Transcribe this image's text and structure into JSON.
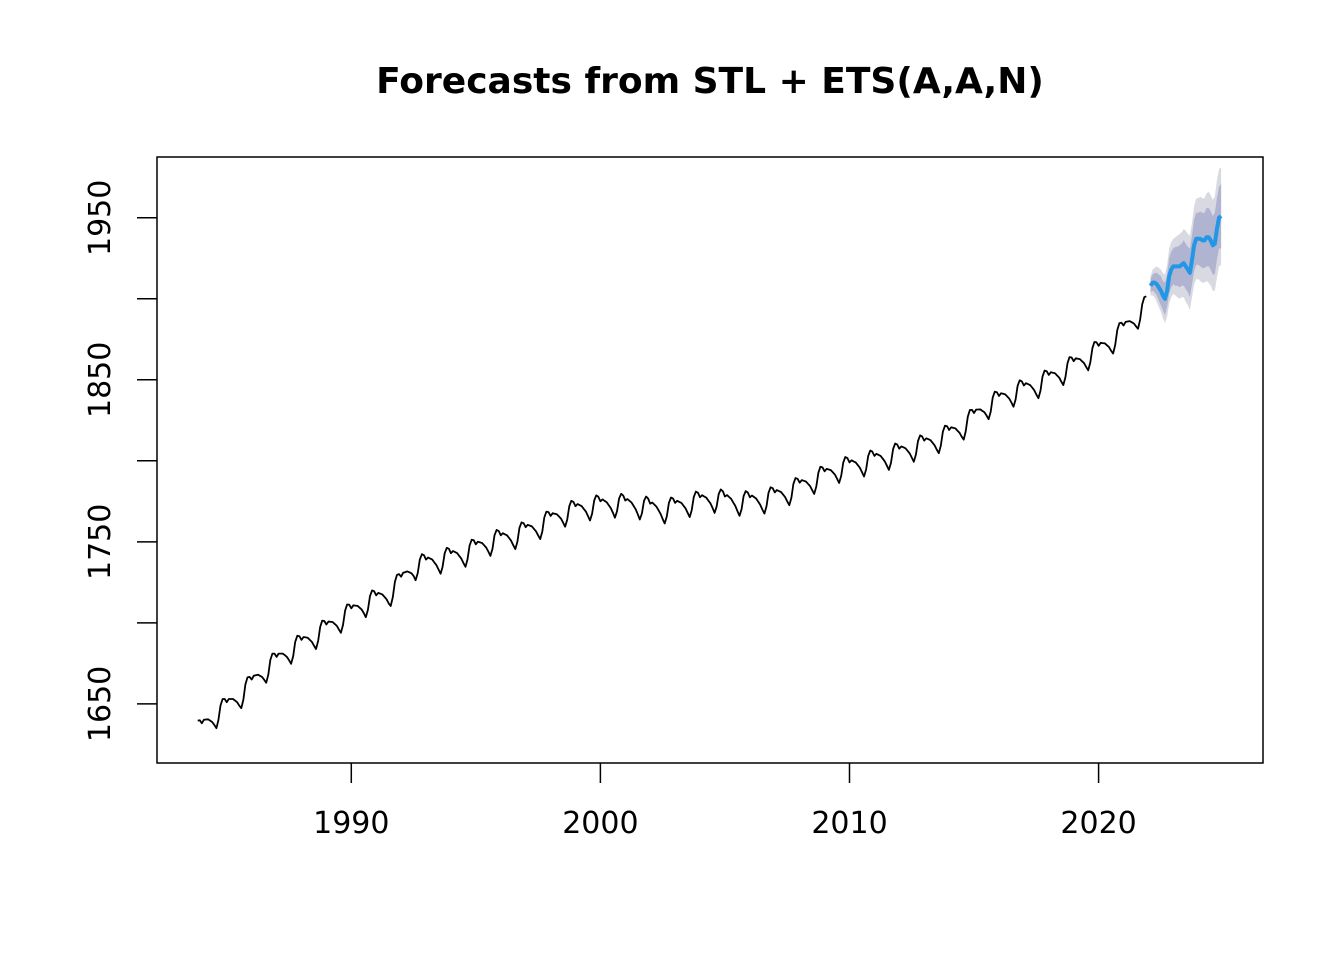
{
  "chart_data": {
    "type": "line",
    "title": "Forecasts from STL +  ETS(A,A,N)",
    "xlabel": "",
    "ylabel": "",
    "xlim": [
      1982.2,
      2026.6
    ],
    "ylim": [
      1613.5,
      1987.5
    ],
    "x_ticks": [
      {
        "value": 1990,
        "label": "1990"
      },
      {
        "value": 2000,
        "label": "2000"
      },
      {
        "value": 2010,
        "label": "2010"
      },
      {
        "value": 2020,
        "label": "2020"
      }
    ],
    "y_ticks": [
      {
        "value": 1650,
        "label": "1650"
      },
      {
        "value": 1700,
        "label": ""
      },
      {
        "value": 1750,
        "label": "1750"
      },
      {
        "value": 1800,
        "label": ""
      },
      {
        "value": 1850,
        "label": "1850"
      },
      {
        "value": 1900,
        "label": ""
      },
      {
        "value": 1950,
        "label": "1950"
      }
    ],
    "seasonal_pattern": [
      0,
      1,
      0,
      -1,
      -3,
      -5,
      -8,
      -11,
      -7,
      1,
      4,
      3
    ],
    "history": {
      "start": 1983.8333,
      "frequency": 12,
      "color": "#000000",
      "annual_means": [
        {
          "year": 1983,
          "value": 1631
        },
        {
          "year": 1984,
          "value": 1645
        },
        {
          "year": 1985,
          "value": 1657
        },
        {
          "year": 1986,
          "value": 1673
        },
        {
          "year": 1987,
          "value": 1685
        },
        {
          "year": 1988,
          "value": 1694
        },
        {
          "year": 1989,
          "value": 1704
        },
        {
          "year": 1990,
          "value": 1714
        },
        {
          "year": 1991,
          "value": 1720
        },
        {
          "year": 1992,
          "value": 1737
        },
        {
          "year": 1993,
          "value": 1741
        },
        {
          "year": 1994,
          "value": 1745
        },
        {
          "year": 1995,
          "value": 1752
        },
        {
          "year": 1996,
          "value": 1756
        },
        {
          "year": 1997,
          "value": 1762
        },
        {
          "year": 1998,
          "value": 1770
        },
        {
          "year": 1999,
          "value": 1774
        },
        {
          "year": 2000,
          "value": 1776
        },
        {
          "year": 2001,
          "value": 1775
        },
        {
          "year": 2002,
          "value": 1772
        },
        {
          "year": 2003,
          "value": 1776
        },
        {
          "year": 2004,
          "value": 1779
        },
        {
          "year": 2005,
          "value": 1777
        },
        {
          "year": 2006,
          "value": 1778
        },
        {
          "year": 2007,
          "value": 1783
        },
        {
          "year": 2008,
          "value": 1790
        },
        {
          "year": 2009,
          "value": 1797
        },
        {
          "year": 2010,
          "value": 1801
        },
        {
          "year": 2011,
          "value": 1805
        },
        {
          "year": 2012,
          "value": 1810
        },
        {
          "year": 2013,
          "value": 1815
        },
        {
          "year": 2014,
          "value": 1823
        },
        {
          "year": 2015,
          "value": 1836
        },
        {
          "year": 2016,
          "value": 1844
        },
        {
          "year": 2017,
          "value": 1849
        },
        {
          "year": 2018,
          "value": 1857
        },
        {
          "year": 2019,
          "value": 1866
        },
        {
          "year": 2020,
          "value": 1876
        },
        {
          "year": 2021,
          "value": 1891
        },
        {
          "year": 2022,
          "value": 1909
        }
      ]
    },
    "forecast": {
      "color": "#2297e6",
      "band80_color": "#b0b4d0",
      "band95_color": "#d9d9e2",
      "points": [
        {
          "x": 2022.0833,
          "mean": 1908,
          "lo80": 1904,
          "hi80": 1912,
          "lo95": 1902,
          "hi95": 1914
        },
        {
          "x": 2022.1667,
          "mean": 1910,
          "lo80": 1905,
          "hi80": 1915,
          "lo95": 1902,
          "hi95": 1918
        },
        {
          "x": 2022.25,
          "mean": 1910,
          "lo80": 1904,
          "hi80": 1916,
          "lo95": 1901,
          "hi95": 1919
        },
        {
          "x": 2022.3333,
          "mean": 1909,
          "lo80": 1902,
          "hi80": 1916,
          "lo95": 1898,
          "hi95": 1920
        },
        {
          "x": 2022.4167,
          "mean": 1907,
          "lo80": 1899,
          "hi80": 1915,
          "lo95": 1895,
          "hi95": 1919
        },
        {
          "x": 2022.5,
          "mean": 1905,
          "lo80": 1896,
          "hi80": 1914,
          "lo95": 1892,
          "hi95": 1918
        },
        {
          "x": 2022.5833,
          "mean": 1902,
          "lo80": 1893,
          "hi80": 1911,
          "lo95": 1888,
          "hi95": 1916
        },
        {
          "x": 2022.6667,
          "mean": 1900,
          "lo80": 1890,
          "hi80": 1910,
          "lo95": 1885,
          "hi95": 1915
        },
        {
          "x": 2022.75,
          "mean": 1905,
          "lo80": 1895,
          "hi80": 1915,
          "lo95": 1889,
          "hi95": 1921
        },
        {
          "x": 2022.8333,
          "mean": 1914,
          "lo80": 1903,
          "hi80": 1925,
          "lo95": 1897,
          "hi95": 1931
        },
        {
          "x": 2022.9167,
          "mean": 1918,
          "lo80": 1907,
          "hi80": 1929,
          "lo95": 1901,
          "hi95": 1935
        },
        {
          "x": 2023.0,
          "mean": 1920,
          "lo80": 1909,
          "hi80": 1931,
          "lo95": 1903,
          "hi95": 1937
        },
        {
          "x": 2023.0833,
          "mean": 1920,
          "lo80": 1908,
          "hi80": 1932,
          "lo95": 1902,
          "hi95": 1938
        },
        {
          "x": 2023.1667,
          "mean": 1920,
          "lo80": 1908,
          "hi80": 1932,
          "lo95": 1901,
          "hi95": 1939
        },
        {
          "x": 2023.25,
          "mean": 1920,
          "lo80": 1907,
          "hi80": 1933,
          "lo95": 1900,
          "hi95": 1940
        },
        {
          "x": 2023.3333,
          "mean": 1921,
          "lo80": 1908,
          "hi80": 1934,
          "lo95": 1901,
          "hi95": 1941
        },
        {
          "x": 2023.4167,
          "mean": 1922,
          "lo80": 1908,
          "hi80": 1936,
          "lo95": 1901,
          "hi95": 1943
        },
        {
          "x": 2023.5,
          "mean": 1920,
          "lo80": 1906,
          "hi80": 1934,
          "lo95": 1898,
          "hi95": 1942
        },
        {
          "x": 2023.5833,
          "mean": 1918,
          "lo80": 1904,
          "hi80": 1932,
          "lo95": 1896,
          "hi95": 1940
        },
        {
          "x": 2023.6667,
          "mean": 1916,
          "lo80": 1901,
          "hi80": 1931,
          "lo95": 1893,
          "hi95": 1939
        },
        {
          "x": 2023.75,
          "mean": 1924,
          "lo80": 1909,
          "hi80": 1939,
          "lo95": 1901,
          "hi95": 1947
        },
        {
          "x": 2023.8333,
          "mean": 1933,
          "lo80": 1917,
          "hi80": 1949,
          "lo95": 1909,
          "hi95": 1957
        },
        {
          "x": 2023.9167,
          "mean": 1937,
          "lo80": 1921,
          "hi80": 1953,
          "lo95": 1912,
          "hi95": 1962
        },
        {
          "x": 2024.0,
          "mean": 1937,
          "lo80": 1921,
          "hi80": 1953,
          "lo95": 1912,
          "hi95": 1962
        },
        {
          "x": 2024.0833,
          "mean": 1937,
          "lo80": 1920,
          "hi80": 1954,
          "lo95": 1911,
          "hi95": 1963
        },
        {
          "x": 2024.1667,
          "mean": 1936,
          "lo80": 1919,
          "hi80": 1953,
          "lo95": 1910,
          "hi95": 1962
        },
        {
          "x": 2024.25,
          "mean": 1936,
          "lo80": 1919,
          "hi80": 1953,
          "lo95": 1910,
          "hi95": 1962
        },
        {
          "x": 2024.3333,
          "mean": 1938,
          "lo80": 1920,
          "hi80": 1956,
          "lo95": 1911,
          "hi95": 1965
        },
        {
          "x": 2024.4167,
          "mean": 1938,
          "lo80": 1920,
          "hi80": 1956,
          "lo95": 1910,
          "hi95": 1966
        },
        {
          "x": 2024.5,
          "mean": 1936,
          "lo80": 1918,
          "hi80": 1954,
          "lo95": 1908,
          "hi95": 1964
        },
        {
          "x": 2024.5833,
          "mean": 1933,
          "lo80": 1915,
          "hi80": 1951,
          "lo95": 1905,
          "hi95": 1961
        },
        {
          "x": 2024.6667,
          "mean": 1934,
          "lo80": 1915,
          "hi80": 1953,
          "lo95": 1905,
          "hi95": 1963
        },
        {
          "x": 2024.75,
          "mean": 1943,
          "lo80": 1924,
          "hi80": 1962,
          "lo95": 1913,
          "hi95": 1973
        },
        {
          "x": 2024.8333,
          "mean": 1950,
          "lo80": 1931,
          "hi80": 1969,
          "lo95": 1920,
          "hi95": 1980
        },
        {
          "x": 2024.9167,
          "mean": 1951,
          "lo80": 1931,
          "hi80": 1971,
          "lo95": 1921,
          "hi95": 1981
        }
      ]
    }
  }
}
